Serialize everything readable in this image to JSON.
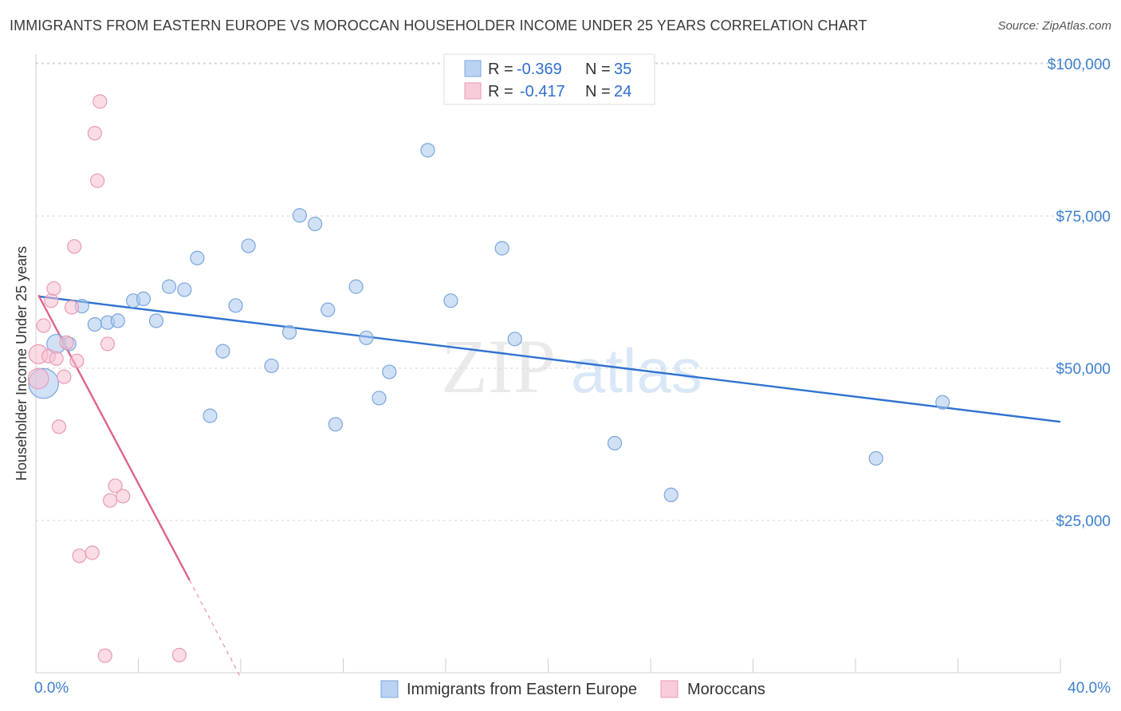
{
  "title": "IMMIGRANTS FROM EASTERN EUROPE VS MOROCCAN HOUSEHOLDER INCOME UNDER 25 YEARS CORRELATION CHART",
  "source": "Source: ZipAtlas.com",
  "watermark": {
    "zip": "ZIP",
    "atlas": "atlas"
  },
  "colors": {
    "blue": "#a9c8ef",
    "blue_line": "#2f72d0",
    "pink": "#f6bfd0",
    "pink_line": "#e0618f"
  },
  "legend": {
    "r_label": "R =",
    "n_label": "N =",
    "blue": {
      "r": "-0.369",
      "n": "35"
    },
    "pink": {
      "r": "-0.417",
      "n": "24"
    }
  },
  "bottom_legend": {
    "blue": "Immigrants from Eastern Europe",
    "pink": "Moroccans"
  },
  "chart_data": {
    "type": "scatter",
    "ylabel": "Householder Income Under 25 years",
    "xlim": [
      0,
      40
    ],
    "ylim": [
      0,
      105000
    ],
    "x_tick_labels": {
      "min": "0.0%",
      "max": "40.0%"
    },
    "y_ticks": [
      {
        "value": 25000,
        "label": "$25,000"
      },
      {
        "value": 50000,
        "label": "$50,000"
      },
      {
        "value": 75000,
        "label": "$75,000"
      },
      {
        "value": 100000,
        "label": "$100,000"
      }
    ],
    "series": [
      {
        "name": "Immigrants from Eastern Europe",
        "trend": {
          "x": [
            0.1,
            40
          ],
          "y": [
            61800,
            41200
          ]
        },
        "points": [
          {
            "x": 0.3,
            "y": 47500,
            "s": 2.2
          },
          {
            "x": 0.8,
            "y": 54000,
            "s": 1.4
          },
          {
            "x": 1.3,
            "y": 54000
          },
          {
            "x": 1.8,
            "y": 60200
          },
          {
            "x": 2.3,
            "y": 57200
          },
          {
            "x": 2.8,
            "y": 57500
          },
          {
            "x": 3.2,
            "y": 57800
          },
          {
            "x": 3.8,
            "y": 61100
          },
          {
            "x": 4.2,
            "y": 61400
          },
          {
            "x": 4.7,
            "y": 57800
          },
          {
            "x": 5.2,
            "y": 63400
          },
          {
            "x": 5.8,
            "y": 62900
          },
          {
            "x": 6.3,
            "y": 68100
          },
          {
            "x": 6.8,
            "y": 42200
          },
          {
            "x": 7.3,
            "y": 52800
          },
          {
            "x": 7.8,
            "y": 60300
          },
          {
            "x": 8.3,
            "y": 70100
          },
          {
            "x": 9.2,
            "y": 50400
          },
          {
            "x": 9.9,
            "y": 55900
          },
          {
            "x": 10.3,
            "y": 75100
          },
          {
            "x": 10.9,
            "y": 73700
          },
          {
            "x": 11.4,
            "y": 59600
          },
          {
            "x": 11.7,
            "y": 40800
          },
          {
            "x": 12.5,
            "y": 63400
          },
          {
            "x": 12.9,
            "y": 55000
          },
          {
            "x": 13.4,
            "y": 45100
          },
          {
            "x": 13.8,
            "y": 49400
          },
          {
            "x": 15.3,
            "y": 85800
          },
          {
            "x": 16.2,
            "y": 61100
          },
          {
            "x": 18.2,
            "y": 69700
          },
          {
            "x": 18.7,
            "y": 54800
          },
          {
            "x": 22.6,
            "y": 37700
          },
          {
            "x": 24.8,
            "y": 29200
          },
          {
            "x": 32.8,
            "y": 35200
          },
          {
            "x": 35.4,
            "y": 44400
          }
        ]
      },
      {
        "name": "Moroccans",
        "trend": {
          "x": [
            0.1,
            6.0
          ],
          "y": [
            62000,
            15200
          ]
        },
        "trend_dashed": {
          "x": [
            6.0,
            8.0
          ],
          "y": [
            15200,
            -800
          ]
        },
        "points": [
          {
            "x": 0.1,
            "y": 48300,
            "s": 1.5
          },
          {
            "x": 0.1,
            "y": 52300,
            "s": 1.4
          },
          {
            "x": 0.3,
            "y": 57000
          },
          {
            "x": 0.5,
            "y": 52000
          },
          {
            "x": 0.6,
            "y": 61100
          },
          {
            "x": 0.7,
            "y": 63100
          },
          {
            "x": 0.8,
            "y": 51600
          },
          {
            "x": 0.9,
            "y": 40400
          },
          {
            "x": 1.1,
            "y": 48600
          },
          {
            "x": 1.2,
            "y": 54200
          },
          {
            "x": 1.4,
            "y": 60000
          },
          {
            "x": 1.5,
            "y": 70000
          },
          {
            "x": 1.6,
            "y": 51200
          },
          {
            "x": 1.7,
            "y": 19200
          },
          {
            "x": 2.2,
            "y": 19700
          },
          {
            "x": 2.3,
            "y": 88600
          },
          {
            "x": 2.4,
            "y": 80800
          },
          {
            "x": 2.5,
            "y": 93800
          },
          {
            "x": 2.7,
            "y": 2800
          },
          {
            "x": 2.8,
            "y": 54000
          },
          {
            "x": 2.9,
            "y": 28300
          },
          {
            "x": 3.1,
            "y": 30700
          },
          {
            "x": 3.4,
            "y": 29000
          },
          {
            "x": 5.6,
            "y": 2900
          }
        ]
      }
    ]
  }
}
